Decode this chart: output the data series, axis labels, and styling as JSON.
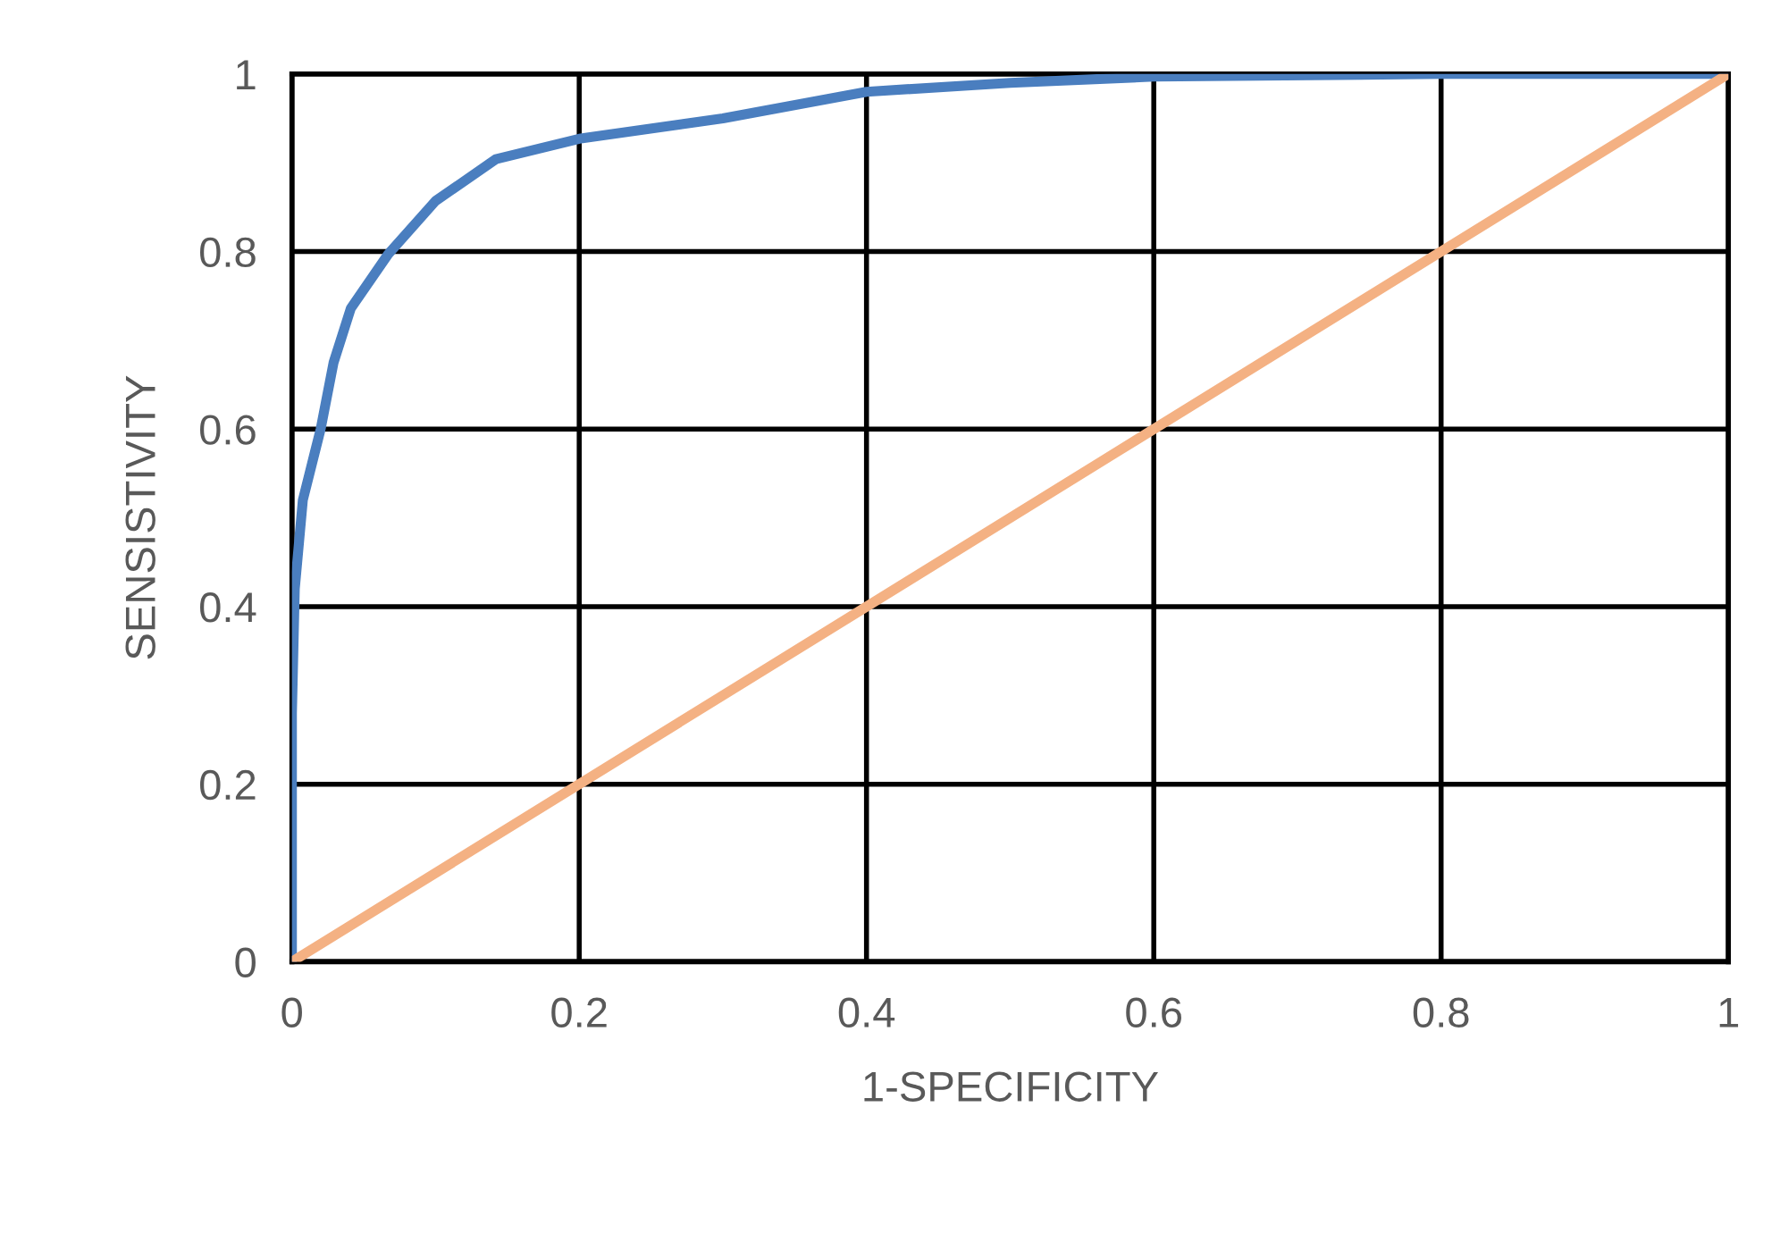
{
  "chart_data": {
    "type": "line",
    "xlabel": "1-SPECIFICITY",
    "ylabel": "SENSISTIVITY",
    "series": [
      {
        "color": "#4a7ebf",
        "x": [
          0,
          0,
          0.002,
          0.0076,
          0.02,
          0.029,
          0.041,
          0.067,
          0.1,
          0.142,
          0.2,
          0.3,
          0.4,
          0.5,
          0.6,
          0.8,
          1
        ],
        "values": [
          0,
          0.28,
          0.42,
          0.52,
          0.6,
          0.675,
          0.736,
          0.797,
          0.857,
          0.904,
          0.927,
          0.95,
          0.98,
          0.99,
          0.997,
          1,
          1
        ]
      },
      {
        "color": "#f4b183",
        "x": [
          0,
          1
        ],
        "values": [
          0,
          1
        ]
      }
    ],
    "xlim": [
      0,
      1
    ],
    "ylim": [
      0,
      1
    ],
    "xticks": [
      0,
      0.2,
      0.4,
      0.6,
      0.8,
      1
    ],
    "yticks": [
      0,
      0.2,
      0.4,
      0.6,
      0.8,
      1
    ],
    "grid": true,
    "legend": false
  }
}
